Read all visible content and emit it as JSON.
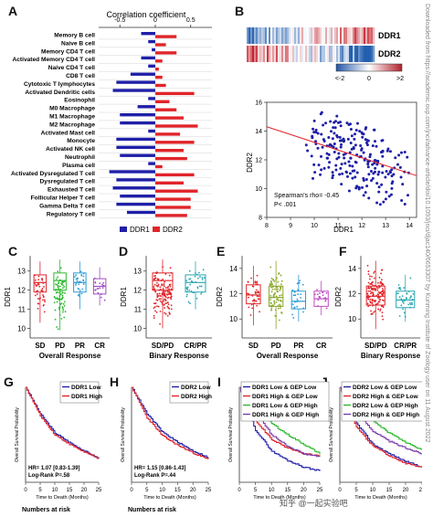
{
  "panels": {
    "A": "A",
    "B": "B",
    "C": "C",
    "D": "D",
    "E": "E",
    "F": "F",
    "G": "G",
    "H": "H",
    "I": "I",
    "J": "J"
  },
  "colors": {
    "ddr1": "#1f1fa8",
    "ddr2": "#e0242a",
    "green": "#2fb82f",
    "purple": "#7a3ea8"
  },
  "panelA": {
    "title": "Correlation coefficient",
    "ticks": [
      "-0.5",
      "0",
      "0.5"
    ],
    "cells": [
      "Memory B cell",
      "Naive B cell",
      "Memory CD4 T cell",
      "Activated Memory CD4 T cell",
      "Naive CD4 T cell",
      "CD8 T cell",
      "Cytotoxic T lymphocytes",
      "Activated Dendritic cells",
      "Eosinophil",
      "M0 Macrophage",
      "M1 Macrophage",
      "M2 Macrophage",
      "Activated Mast cell",
      "Monocyte",
      "Activated NK cell",
      "Neutrophil",
      "Plasma cell",
      "Activated Dysregulated T cell",
      "Dysregulated T cell",
      "Exhausted T cell",
      "Follicular Helper T cell",
      "Gamma Delta T cell",
      "Regulatory T cell"
    ],
    "legend": [
      "DDR1",
      "DDR2"
    ]
  },
  "panelB": {
    "heat_labels": [
      "DDR1",
      "DDR2"
    ],
    "colorbar": [
      "<-2",
      "0",
      ">2"
    ],
    "ylabel": "DDR2",
    "xlabel": "DDR1",
    "xticks": [
      "8",
      "9",
      "10",
      "11",
      "12",
      "13",
      "14"
    ],
    "yticks": [
      "8",
      "10",
      "12",
      "14",
      "16"
    ],
    "annotation": [
      "Spearman's rho= -0.45",
      "P< .001"
    ]
  },
  "panelC": {
    "ylabel": "DDR1",
    "cats": [
      "SD",
      "PD",
      "PR",
      "CR"
    ],
    "xlabel": "Overall Response",
    "yticks": [
      "10",
      "11",
      "12",
      "13"
    ]
  },
  "panelD": {
    "ylabel": "DDR1",
    "cats": [
      "SD/PD",
      "CR/PR"
    ],
    "xlabel": "Binary Response",
    "yticks": [
      "10",
      "11",
      "12",
      "13"
    ]
  },
  "panelE": {
    "ylabel": "DDR2",
    "cats": [
      "SD",
      "PD",
      "PR",
      "CR"
    ],
    "xlabel": "Overall Response",
    "yticks": [
      "10",
      "12",
      "14"
    ]
  },
  "panelF": {
    "ylabel": "DDR2",
    "cats": [
      "SD/PD",
      "CR/PR"
    ],
    "xlabel": "Binary Response",
    "yticks": [
      "10",
      "12",
      "14"
    ]
  },
  "panelG": {
    "legend": [
      "DDR1 Low",
      "DDR1 High"
    ],
    "stats": [
      "HR= 1.07 [0.83-1.39]",
      "Log-Rank P=.58"
    ],
    "ylabel": "Overall Survival Probability",
    "xlabel": "Time to Death (Months)",
    "xticks": [
      "0",
      "5",
      "10",
      "15",
      "20",
      "25"
    ],
    "footer": "Numbers at risk"
  },
  "panelH": {
    "legend": [
      "DDR2 Low",
      "DDR2 High"
    ],
    "stats": [
      "HR= 1.15 [0.86-1.43]",
      "Log-Rank P=.44"
    ],
    "ylabel": "Overall Survival Probability",
    "xlabel": "Time to Death (Months)",
    "xticks": [
      "0",
      "5",
      "10",
      "15",
      "20",
      "25"
    ],
    "footer": "Numbers at risk"
  },
  "panelI": {
    "legend": [
      "DDR1 Low & GEP Low",
      "DDR1 High & GEP Low",
      "DDR1 Low & GEP High",
      "DDR1 High & GEP High"
    ],
    "ylabel": "Overall Survival Probability",
    "xlabel": "Time to Death (Months)",
    "xticks": [
      "0",
      "5",
      "10",
      "15",
      "20",
      "25"
    ]
  },
  "panelJ": {
    "legend": [
      "DDR2 Low & GEP Low",
      "DDR2 High & GEP Low",
      "DDR2 Low & GEP High",
      "DDR2 High & GEP High"
    ],
    "ylabel": "Overall Survival Probability",
    "xlabel": "Time to Death (Months)",
    "xticks": [
      "0",
      "5",
      "10",
      "15",
      "20",
      "25"
    ]
  },
  "watermark": "Downloaded from https://academic.oup.com/jnci/advance-article/doi/10.1093/jnci/djac140/6653307 by Kunming Institute of Zoology user on 11 August 2022",
  "footer_mark": "知乎 @一起实验吧",
  "chart_data": [
    {
      "panel": "A",
      "type": "bar",
      "title": "Correlation coefficient",
      "categories": [
        "Memory B cell",
        "Naive B cell",
        "Memory CD4 T cell",
        "Activated Memory CD4 T cell",
        "Naive CD4 T cell",
        "CD8 T cell",
        "Cytotoxic T lymphocytes",
        "Activated Dendritic cells",
        "Eosinophil",
        "M0 Macrophage",
        "M1 Macrophage",
        "M2 Macrophage",
        "Activated Mast cell",
        "Monocyte",
        "Activated NK cell",
        "Neutrophil",
        "Plasma cell",
        "Activated Dysregulated T cell",
        "Dysregulated T cell",
        "Exhausted T cell",
        "Follicular Helper T cell",
        "Gamma Delta T cell",
        "Regulatory T cell"
      ],
      "series": [
        {
          "name": "DDR1",
          "values": [
            -0.2,
            -0.1,
            -0.05,
            -0.2,
            -0.1,
            -0.35,
            -0.55,
            -0.6,
            -0.1,
            -0.25,
            -0.5,
            -0.5,
            -0.1,
            -0.55,
            -0.55,
            -0.5,
            -0.1,
            -0.65,
            -0.55,
            -0.6,
            -0.5,
            -0.55,
            -0.4
          ]
        },
        {
          "name": "DDR2",
          "values": [
            0.3,
            0.15,
            0.3,
            0.1,
            0.05,
            0.1,
            0.15,
            0.55,
            0.2,
            0.3,
            0.4,
            0.6,
            0.35,
            0.55,
            0.4,
            0.45,
            0.1,
            0.55,
            0.4,
            0.6,
            0.5,
            0.5,
            0.45
          ]
        }
      ],
      "xlim": [
        -0.8,
        0.8
      ]
    },
    {
      "panel": "B",
      "type": "scatter",
      "xlabel": "DDR1",
      "ylabel": "DDR2",
      "xlim": [
        8,
        14.3
      ],
      "ylim": [
        8,
        16
      ],
      "trend": {
        "x": [
          8,
          14.3
        ],
        "y": [
          14.3,
          10.9
        ]
      }
    },
    {
      "panel": "C",
      "type": "box",
      "categories": [
        "SD",
        "PD",
        "PR",
        "CR"
      ],
      "ylabel": "DDR1",
      "ylim": [
        9.5,
        13.8
      ],
      "boxes": [
        {
          "q1": 11.9,
          "med": 12.4,
          "q3": 12.8,
          "lo": 10.3,
          "hi": 13.5
        },
        {
          "q1": 12.0,
          "med": 12.5,
          "q3": 12.9,
          "lo": 9.9,
          "hi": 13.6
        },
        {
          "q1": 11.9,
          "med": 12.4,
          "q3": 12.9,
          "lo": 11.0,
          "hi": 13.5
        },
        {
          "q1": 11.8,
          "med": 12.2,
          "q3": 12.6,
          "lo": 11.2,
          "hi": 13.2
        }
      ]
    },
    {
      "panel": "D",
      "type": "box",
      "categories": [
        "SD/PD",
        "CR/PR"
      ],
      "ylabel": "DDR1",
      "ylim": [
        9.5,
        13.8
      ],
      "boxes": [
        {
          "q1": 12.0,
          "med": 12.5,
          "q3": 12.9,
          "lo": 10.0,
          "hi": 13.6
        },
        {
          "q1": 11.9,
          "med": 12.4,
          "q3": 12.8,
          "lo": 11.0,
          "hi": 13.5
        }
      ]
    },
    {
      "panel": "E",
      "type": "box",
      "categories": [
        "SD",
        "PD",
        "PR",
        "CR"
      ],
      "ylabel": "DDR2",
      "ylim": [
        8.5,
        15
      ],
      "boxes": [
        {
          "q1": 11.2,
          "med": 11.9,
          "q3": 12.7,
          "lo": 9.5,
          "hi": 14.2
        },
        {
          "q1": 11.0,
          "med": 11.7,
          "q3": 12.6,
          "lo": 9.2,
          "hi": 14.6
        },
        {
          "q1": 10.8,
          "med": 11.4,
          "q3": 12.2,
          "lo": 9.8,
          "hi": 13.5
        },
        {
          "q1": 11.0,
          "med": 11.6,
          "q3": 12.2,
          "lo": 10.3,
          "hi": 13.0
        }
      ]
    },
    {
      "panel": "F",
      "type": "box",
      "categories": [
        "SD/PD",
        "CR/PR"
      ],
      "ylabel": "DDR2",
      "ylim": [
        8.5,
        15
      ],
      "boxes": [
        {
          "q1": 11.1,
          "med": 11.8,
          "q3": 12.6,
          "lo": 9.2,
          "hi": 14.6
        },
        {
          "q1": 10.9,
          "med": 11.5,
          "q3": 12.2,
          "lo": 9.8,
          "hi": 13.5
        }
      ]
    },
    {
      "panel": "G",
      "type": "line",
      "x": [
        0,
        5,
        10,
        15,
        20,
        25
      ],
      "xlim": [
        0,
        25
      ],
      "ylim": [
        0,
        1
      ],
      "series": [
        {
          "name": "DDR1 Low",
          "values": [
            1.0,
            0.72,
            0.52,
            0.42,
            0.33,
            0.25
          ]
        },
        {
          "name": "DDR1 High",
          "values": [
            1.0,
            0.7,
            0.5,
            0.4,
            0.32,
            0.25
          ]
        }
      ]
    },
    {
      "panel": "H",
      "type": "line",
      "x": [
        0,
        5,
        10,
        15,
        20,
        25
      ],
      "xlim": [
        0,
        25
      ],
      "ylim": [
        0,
        1
      ],
      "series": [
        {
          "name": "DDR2 Low",
          "values": [
            1.0,
            0.72,
            0.53,
            0.42,
            0.33,
            0.26
          ]
        },
        {
          "name": "DDR2 High",
          "values": [
            1.0,
            0.68,
            0.49,
            0.39,
            0.31,
            0.24
          ]
        }
      ]
    },
    {
      "panel": "I",
      "type": "line",
      "x": [
        0,
        5,
        10,
        15,
        20,
        25
      ],
      "xlim": [
        0,
        25
      ],
      "ylim": [
        0,
        1
      ],
      "series": [
        {
          "name": "DDR1 Low & GEP Low",
          "values": [
            1.0,
            0.55,
            0.33,
            0.23,
            0.16,
            0.12
          ]
        },
        {
          "name": "DDR1 High & GEP Low",
          "values": [
            1.0,
            0.65,
            0.45,
            0.36,
            0.3,
            0.28
          ]
        },
        {
          "name": "DDR1 Low & GEP High",
          "values": [
            1.0,
            0.8,
            0.62,
            0.5,
            0.4,
            0.3
          ]
        },
        {
          "name": "DDR1 High & GEP High",
          "values": [
            1.0,
            0.74,
            0.5,
            0.38,
            0.3,
            0.27
          ]
        }
      ]
    },
    {
      "panel": "J",
      "type": "line",
      "x": [
        0,
        5,
        10,
        15,
        20,
        25
      ],
      "xlim": [
        0,
        25
      ],
      "ylim": [
        0,
        1
      ],
      "series": [
        {
          "name": "DDR2 Low & GEP Low",
          "values": [
            1.0,
            0.62,
            0.4,
            0.3,
            0.22,
            0.16
          ]
        },
        {
          "name": "DDR2 High & GEP Low",
          "values": [
            1.0,
            0.58,
            0.38,
            0.28,
            0.2,
            0.15
          ]
        },
        {
          "name": "DDR2 Low & GEP High",
          "values": [
            1.0,
            0.8,
            0.64,
            0.52,
            0.42,
            0.34
          ]
        },
        {
          "name": "DDR2 High & GEP High",
          "values": [
            1.0,
            0.74,
            0.54,
            0.43,
            0.36,
            0.3
          ]
        }
      ]
    }
  ]
}
